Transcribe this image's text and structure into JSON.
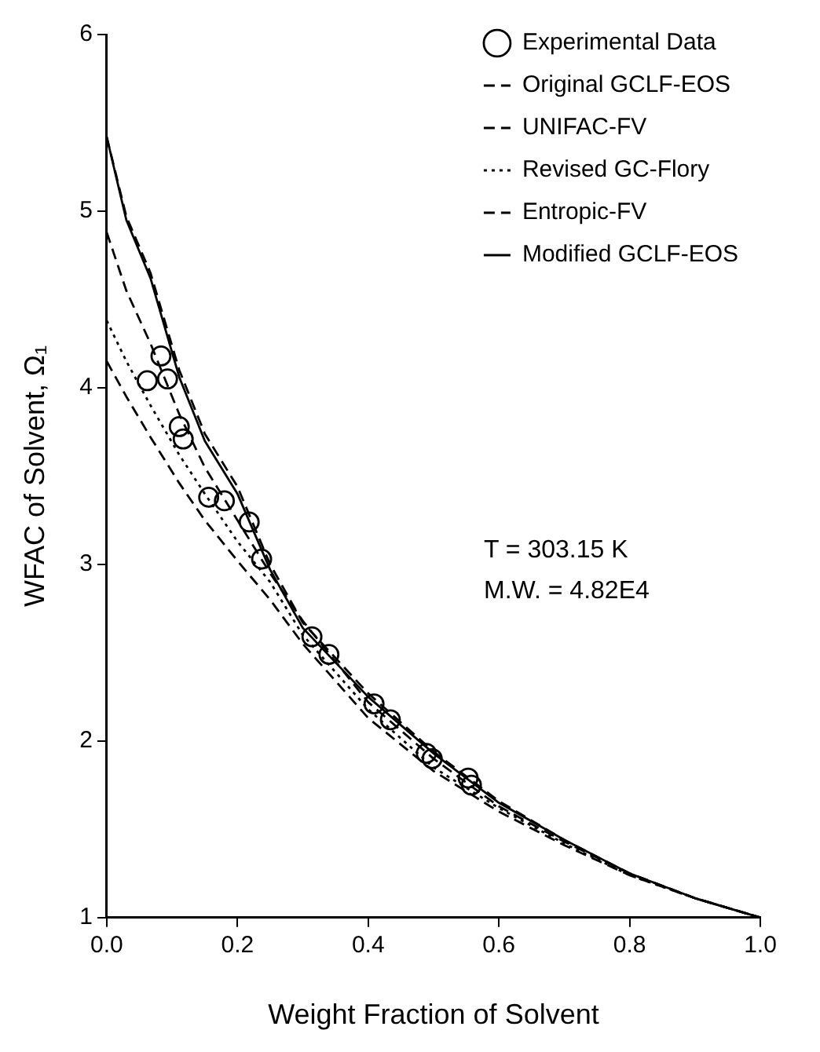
{
  "chart_data": {
    "type": "line",
    "xlabel": "Weight Fraction of Solvent",
    "ylabel": "WFAC of Solvent, Ω₁",
    "xlim": [
      0,
      1
    ],
    "ylim": [
      1,
      6
    ],
    "xticks": [
      {
        "value": 0,
        "label": "0.0"
      },
      {
        "value": 0.2,
        "label": "0.2"
      },
      {
        "value": 0.4,
        "label": "0.4"
      },
      {
        "value": 0.6,
        "label": "0.6"
      },
      {
        "value": 0.8,
        "label": "0.8"
      },
      {
        "value": 1,
        "label": "1.0"
      }
    ],
    "yticks": [
      1,
      2,
      3,
      4,
      5,
      6
    ],
    "grid": false,
    "legend": "top right",
    "marker": "none",
    "annotations": [
      "T = 303.15 K",
      "M.W. = 4.82E4"
    ],
    "series": [
      {
        "name": "Experimental Data",
        "type": "scatter",
        "marker": "circle",
        "color": "#000000",
        "x": [
          0.062,
          0.083,
          0.093,
          0.111,
          0.117,
          0.156,
          0.18,
          0.218,
          0.237,
          0.314,
          0.34,
          0.409,
          0.434,
          0.489,
          0.498,
          0.553,
          0.558
        ],
        "values": [
          4.04,
          4.18,
          4.05,
          3.78,
          3.71,
          3.38,
          3.36,
          3.24,
          3.03,
          2.59,
          2.49,
          2.21,
          2.12,
          1.93,
          1.9,
          1.79,
          1.75
        ]
      },
      {
        "name": "Original GCLF-EOS",
        "type": "line",
        "line_style": "dashed",
        "color": "#000000",
        "x": [
          0,
          0.03,
          0.067,
          0.111,
          0.15,
          0.2,
          0.25,
          0.3,
          0.4,
          0.5,
          0.6,
          0.7,
          0.8,
          0.9,
          1
        ],
        "values": [
          5.42,
          4.97,
          4.65,
          4.1,
          3.74,
          3.44,
          3.0,
          2.67,
          2.27,
          1.94,
          1.66,
          1.44,
          1.25,
          1.11,
          1.0
        ]
      },
      {
        "name": "UNIFAC-FV",
        "type": "line",
        "line_style": "dashed",
        "color": "#000000",
        "x": [
          0,
          0.03,
          0.067,
          0.111,
          0.15,
          0.2,
          0.25,
          0.3,
          0.4,
          0.5,
          0.6,
          0.7,
          0.8,
          0.9,
          1
        ],
        "values": [
          4.88,
          4.55,
          4.25,
          3.85,
          3.55,
          3.25,
          2.95,
          2.68,
          2.22,
          1.9,
          1.63,
          1.43,
          1.25,
          1.11,
          1.0
        ]
      },
      {
        "name": "Revised GC-Flory",
        "type": "line",
        "line_style": "dotted",
        "color": "#000000",
        "x": [
          0,
          0.03,
          0.067,
          0.111,
          0.15,
          0.2,
          0.25,
          0.3,
          0.4,
          0.5,
          0.6,
          0.7,
          0.8,
          0.9,
          1
        ],
        "values": [
          4.38,
          4.15,
          3.9,
          3.62,
          3.4,
          3.13,
          2.9,
          2.6,
          2.18,
          1.85,
          1.62,
          1.42,
          1.24,
          1.11,
          1.0
        ]
      },
      {
        "name": "Entropic-FV",
        "type": "line",
        "line_style": "dashed",
        "color": "#000000",
        "x": [
          0,
          0.03,
          0.067,
          0.111,
          0.15,
          0.2,
          0.25,
          0.3,
          0.4,
          0.5,
          0.6,
          0.7,
          0.8,
          0.9,
          1
        ],
        "values": [
          4.15,
          3.95,
          3.72,
          3.46,
          3.25,
          3.02,
          2.8,
          2.55,
          2.13,
          1.83,
          1.6,
          1.41,
          1.24,
          1.11,
          1.0
        ]
      },
      {
        "name": "Modified GCLF-EOS",
        "type": "line",
        "line_style": "solid",
        "color": "#000000",
        "x": [
          0,
          0.03,
          0.067,
          0.111,
          0.15,
          0.2,
          0.25,
          0.3,
          0.4,
          0.5,
          0.6,
          0.7,
          0.8,
          0.9,
          1
        ],
        "values": [
          5.42,
          4.95,
          4.62,
          4.06,
          3.7,
          3.4,
          2.97,
          2.64,
          2.25,
          1.93,
          1.65,
          1.44,
          1.25,
          1.11,
          1.0
        ]
      }
    ]
  }
}
